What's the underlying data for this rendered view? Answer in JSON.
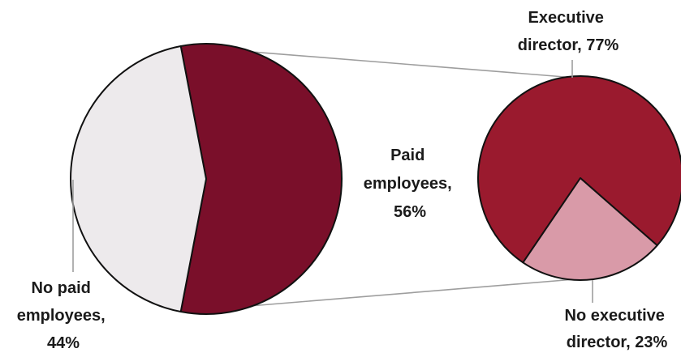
{
  "chart_data": [
    {
      "type": "pie",
      "role": "primary",
      "slices": [
        {
          "label": "Paid employees",
          "value": 56,
          "value_label": "56%",
          "text_lines": [
            "Paid",
            "employees,",
            "56%"
          ],
          "color": "#7A0F2A"
        },
        {
          "label": "No paid employees",
          "value": 44,
          "value_label": "44%",
          "text_lines": [
            "No paid",
            "employees,",
            "44%"
          ],
          "color": "#EDEAEC"
        }
      ]
    },
    {
      "type": "pie",
      "role": "breakdown",
      "breaks_down": "Paid employees",
      "slices": [
        {
          "label": "Executive director",
          "value": 77,
          "value_label": "77%",
          "text_lines": [
            "Executive",
            "director, 77%"
          ],
          "color": "#9A1A2E"
        },
        {
          "label": "No executive director",
          "value": 23,
          "value_label": "23%",
          "text_lines": [
            "No executive",
            "director, 23%"
          ],
          "color": "#D99AA8"
        }
      ]
    }
  ],
  "colors": {
    "outline": "#111111",
    "connector": "#9E9E9E",
    "label_text": "#1A1A1A"
  }
}
